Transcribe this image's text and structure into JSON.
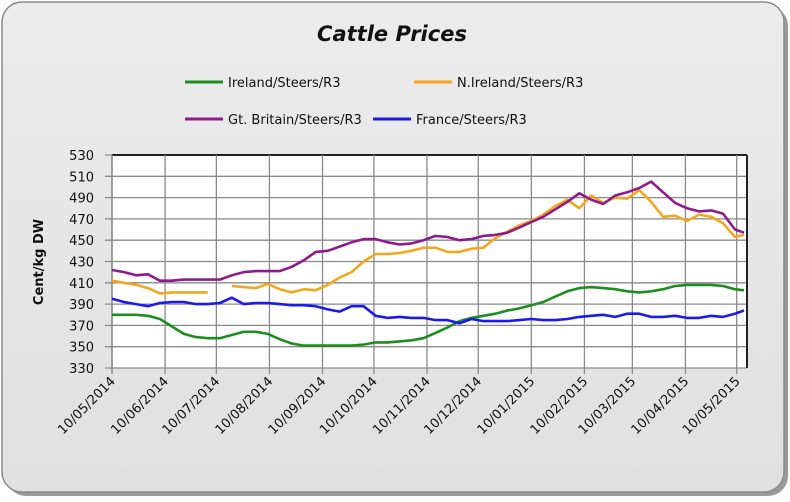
{
  "chart_data": {
    "type": "line",
    "title": "Cattle Prices",
    "xlabel": "",
    "ylabel": "Cent/kg DW",
    "ylim": [
      330,
      530
    ],
    "yticks": [
      330,
      350,
      370,
      390,
      410,
      430,
      450,
      470,
      490,
      510,
      530
    ],
    "grid": true,
    "legend_position": "top",
    "x_unit": "weeks since 10/05/2014",
    "xlim": [
      0,
      53
    ],
    "xticks": [
      {
        "label": "10/05/2014",
        "x": 0
      },
      {
        "label": "10/06/2014",
        "x": 4.43
      },
      {
        "label": "10/07/2014",
        "x": 8.71
      },
      {
        "label": "10/08/2014",
        "x": 13.14
      },
      {
        "label": "10/09/2014",
        "x": 17.57
      },
      {
        "label": "10/10/2014",
        "x": 21.86
      },
      {
        "label": "10/11/2014",
        "x": 26.29
      },
      {
        "label": "10/12/2014",
        "x": 30.57
      },
      {
        "label": "10/01/2015",
        "x": 35
      },
      {
        "label": "10/02/2015",
        "x": 39.43
      },
      {
        "label": "10/03/2015",
        "x": 43.43
      },
      {
        "label": "10/04/2015",
        "x": 47.86
      },
      {
        "label": "10/05/2015",
        "x": 52.14
      }
    ],
    "x": [
      0,
      1,
      2,
      3,
      4,
      5,
      6,
      7,
      8,
      9,
      10,
      11,
      12,
      13,
      14,
      15,
      16,
      17,
      18,
      19,
      20,
      21,
      22,
      23,
      24,
      25,
      26,
      27,
      28,
      29,
      30,
      31,
      32,
      33,
      34,
      35,
      36,
      37,
      38,
      39,
      40,
      41,
      42,
      43,
      44,
      45,
      46,
      47,
      48,
      49,
      50,
      51,
      52,
      52.75
    ],
    "series": [
      {
        "name": "Ireland/Steers/R3",
        "color": "#1f8c1f",
        "values": [
          380,
          380,
          380,
          379,
          376,
          369,
          362,
          359,
          358,
          358,
          361,
          364,
          364,
          362,
          357,
          353,
          351,
          351,
          351,
          351,
          351,
          352,
          354,
          354,
          355,
          356,
          358,
          363,
          368,
          374,
          377,
          379,
          381,
          384,
          386,
          389,
          392,
          397,
          402,
          405,
          406,
          405,
          404,
          402,
          401,
          402,
          404,
          407,
          408,
          408,
          408,
          407,
          404,
          403
        ]
      },
      {
        "name": "N.Ireland/Steers/R3",
        "color": "#f0a820",
        "values": [
          412,
          410,
          408,
          405,
          400,
          401,
          401,
          401,
          401,
          null,
          407,
          406,
          405,
          409,
          404,
          401,
          404,
          403,
          408,
          415,
          420,
          430,
          437,
          437,
          438,
          440,
          443,
          443,
          439,
          439,
          442,
          443,
          452,
          458,
          464,
          468,
          474,
          482,
          488,
          480,
          492,
          485,
          490,
          489,
          497,
          486,
          472,
          473,
          468,
          474,
          472,
          466,
          453,
          455
        ]
      },
      {
        "name": "Gt. Britain/Steers/R3",
        "color": "#8e1a8e",
        "values": [
          422,
          420,
          417,
          418,
          412,
          412,
          413,
          413,
          413,
          413,
          417,
          420,
          421,
          421,
          421,
          425,
          431,
          439,
          440,
          444,
          448,
          451,
          451,
          448,
          446,
          447,
          450,
          454,
          453,
          450,
          451,
          454,
          455,
          457,
          462,
          467,
          472,
          479,
          486,
          494,
          488,
          484,
          492,
          495,
          499,
          505,
          495,
          485,
          480,
          477,
          478,
          475,
          460,
          457
        ]
      },
      {
        "name": "France/Steers/R3",
        "color": "#1a1aee",
        "values": [
          395,
          392,
          390,
          388,
          391,
          392,
          392,
          390,
          390,
          391,
          396,
          390,
          391,
          391,
          390,
          389,
          389,
          388,
          385,
          383,
          388,
          388,
          379,
          377,
          378,
          377,
          377,
          375,
          375,
          372,
          376,
          374,
          374,
          374,
          375,
          376,
          375,
          375,
          376,
          378,
          379,
          380,
          378,
          381,
          381,
          378,
          378,
          379,
          377,
          377,
          379,
          378,
          381,
          384
        ]
      }
    ]
  }
}
